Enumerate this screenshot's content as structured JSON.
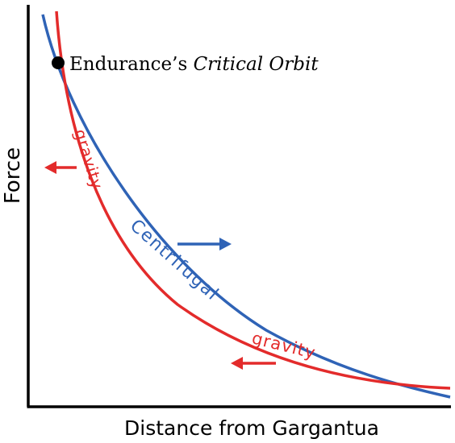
{
  "axes": {
    "x_label": "Distance from Gargantua",
    "y_label": "Force"
  },
  "annotation": {
    "prefix": "Endurance’s ",
    "emphasis": "Critical Orbit"
  },
  "labels": {
    "gravity_upper": "gravity",
    "centrifugal": "Centrifugal",
    "gravity_lower": "gravity"
  },
  "colors": {
    "gravity": "#e32b2b",
    "centrifugal": "#2f63b6",
    "axis": "#000000",
    "point": "#000000"
  }
}
